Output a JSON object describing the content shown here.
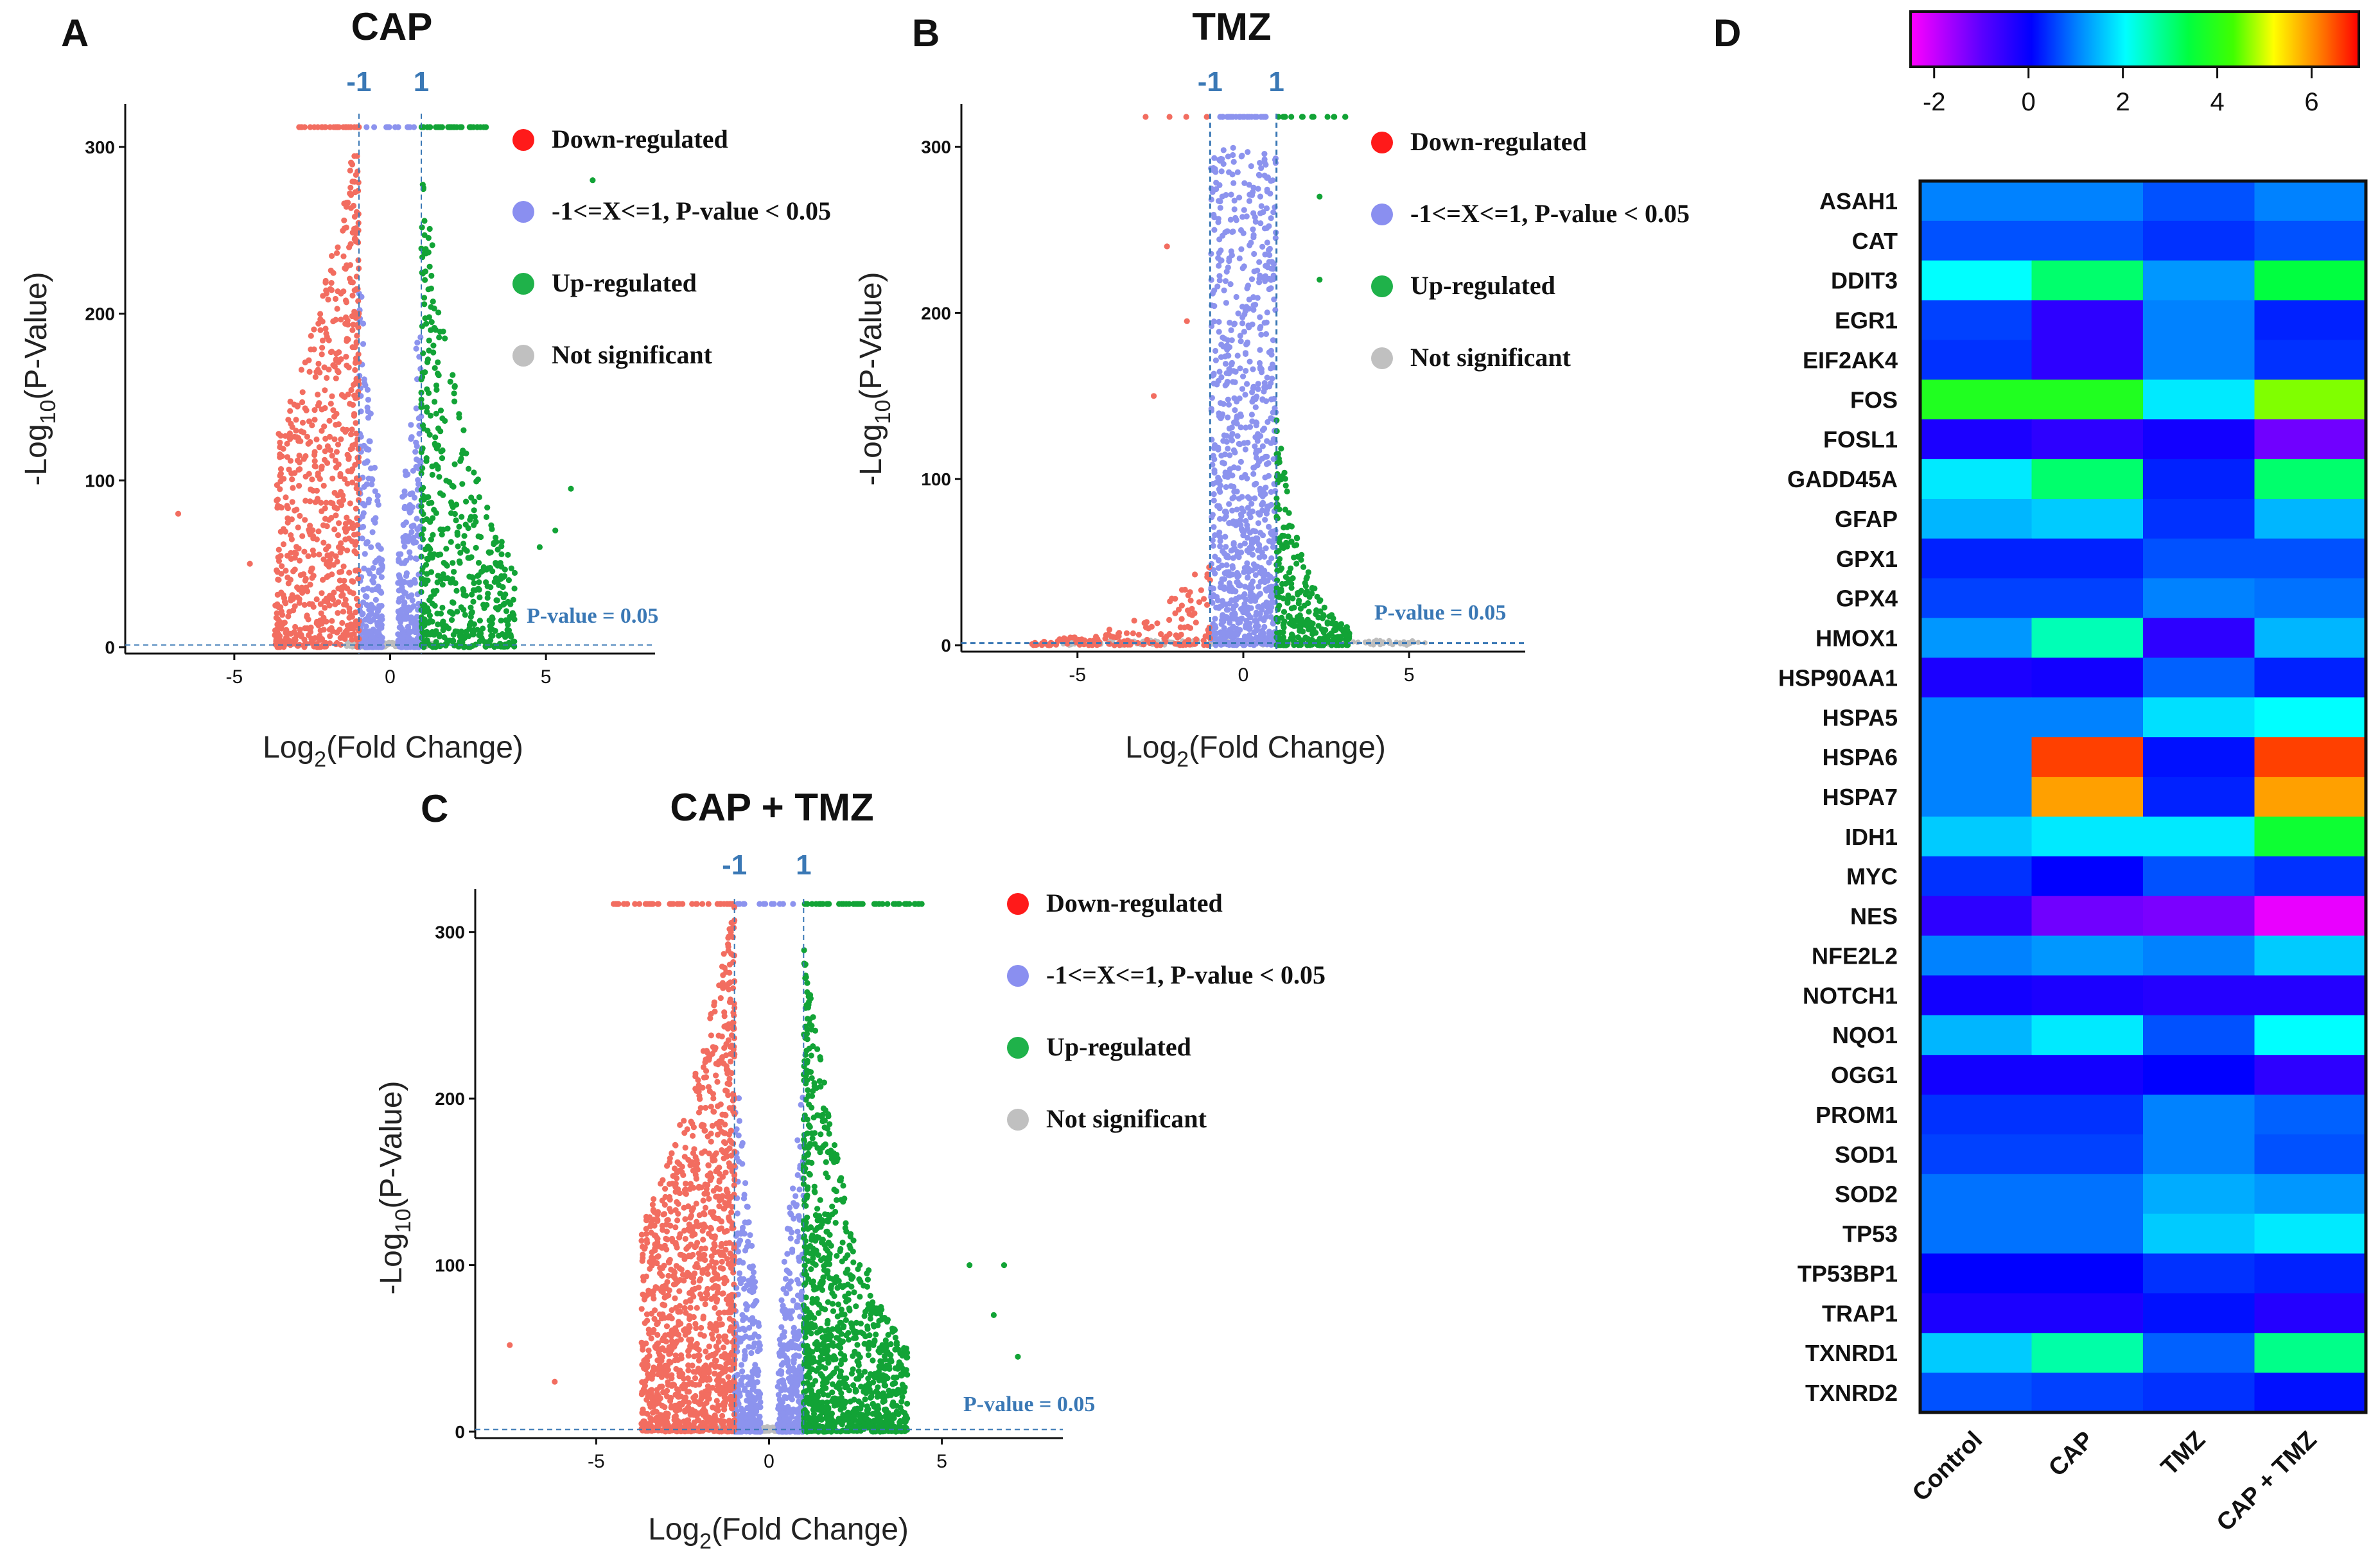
{
  "panels": [
    {
      "id": "A",
      "title": "CAP"
    },
    {
      "id": "B",
      "title": "TMZ"
    },
    {
      "id": "C",
      "title": "CAP + TMZ"
    },
    {
      "id": "D",
      "title": ""
    }
  ],
  "volcano_common": {
    "ylabel_main": "-Log",
    "ylabel_sub": "10",
    "ylabel_rest": "(P-Value)",
    "xlabel_main": "Log",
    "xlabel_sub": "2",
    "xlabel_rest": "(Fold Change)",
    "thr_neg": "-1",
    "thr_pos": "1",
    "pvalue_note": "P-value = 0.05",
    "legend": [
      {
        "label": "Down-regulated",
        "color": "#ff1a1a"
      },
      {
        "label": "-1<=X<=1, P-value < 0.05",
        "color": "#8a8ff0"
      },
      {
        "label": "Up-regulated",
        "color": "#1fb24a"
      },
      {
        "label": "Not significant",
        "color": "#c0c0c0"
      }
    ],
    "point_colors": {
      "down": "#f26d60",
      "mid": "#8c93ee",
      "up": "#12a336",
      "ns": "#bdbdbd"
    },
    "threshold_color": "#3a78b5"
  },
  "chart_data": [
    {
      "type": "scatter",
      "panel": "A",
      "title": "CAP",
      "xlabel": "Log2(Fold Change)",
      "ylabel": "-Log10(P-Value)",
      "xlim": [
        -8.5,
        8.5
      ],
      "ylim": [
        0,
        318
      ],
      "xticks": [
        -5,
        0,
        5
      ],
      "yticks": [
        0,
        100,
        200,
        300
      ],
      "thresholds": {
        "fold_change": [
          -1,
          1
        ],
        "pvalue": 0.05
      },
      "approx_counts": {
        "down": 700,
        "mid": 480,
        "up": 520,
        "ns": 200
      },
      "extremes": {
        "down": [
          [
            -6.8,
            80
          ],
          [
            -4.5,
            50
          ]
        ],
        "up": [
          [
            5.3,
            70
          ],
          [
            5.8,
            95
          ],
          [
            4.8,
            60
          ],
          [
            6.5,
            280
          ]
        ]
      }
    },
    {
      "type": "scatter",
      "panel": "B",
      "title": "TMZ",
      "xlabel": "Log2(Fold Change)",
      "ylabel": "-Log10(P-Value)",
      "xlim": [
        -8.5,
        8.5
      ],
      "ylim": [
        0,
        318
      ],
      "xticks": [
        -5,
        0,
        5
      ],
      "yticks": [
        0,
        100,
        200,
        300
      ],
      "thresholds": {
        "fold_change": [
          -1,
          1
        ],
        "pvalue": 0.05
      },
      "approx_counts": {
        "down": 160,
        "mid": 900,
        "up": 320,
        "ns": 200
      },
      "extremes": {
        "down": [
          [
            -2.7,
            150
          ],
          [
            -1.7,
            195
          ],
          [
            -2.3,
            240
          ]
        ],
        "up": [
          [
            2.3,
            270
          ],
          [
            2.3,
            220
          ]
        ]
      }
    },
    {
      "type": "scatter",
      "panel": "C",
      "title": "CAP + TMZ",
      "xlabel": "Log2(Fold Change)",
      "ylabel": "-Log10(P-Value)",
      "xlim": [
        -8.5,
        8.5
      ],
      "ylim": [
        0,
        318
      ],
      "xticks": [
        -5,
        0,
        5
      ],
      "yticks": [
        0,
        100,
        200,
        300
      ],
      "thresholds": {
        "fold_change": [
          -1,
          1
        ],
        "pvalue": 0.05
      },
      "approx_counts": {
        "down": 1300,
        "mid": 700,
        "up": 1100,
        "ns": 300
      },
      "extremes": {
        "down": [
          [
            -7.5,
            52
          ],
          [
            -6.2,
            30
          ]
        ],
        "up": [
          [
            5.8,
            100
          ],
          [
            6.8,
            100
          ],
          [
            7.2,
            45
          ],
          [
            6.5,
            70
          ]
        ]
      }
    },
    {
      "type": "heatmap",
      "panel": "D",
      "columns": [
        "Control",
        "CAP",
        "TMZ",
        "CAP + TMZ"
      ],
      "rows": [
        "ASAH1",
        "CAT",
        "DDIT3",
        "EGR1",
        "EIF2AK4",
        "FOS",
        "FOSL1",
        "GADD45A",
        "GFAP",
        "GPX1",
        "GPX4",
        "HMOX1",
        "HSP90AA1",
        "HSPA5",
        "HSPA6",
        "HSPA7",
        "IDH1",
        "MYC",
        "NES",
        "NFE2L2",
        "NOTCH1",
        "NQO1",
        "OGG1",
        "PROM1",
        "SOD1",
        "SOD2",
        "TP53",
        "TP53BP1",
        "TRAP1",
        "TXNRD1",
        "TXNRD2"
      ],
      "values": [
        [
          0.8,
          0.8,
          0.5,
          0.8
        ],
        [
          0.5,
          0.5,
          0.3,
          0.5
        ],
        [
          2.0,
          3.0,
          1.0,
          3.3
        ],
        [
          0.4,
          -0.5,
          0.8,
          0.2
        ],
        [
          0.3,
          -0.5,
          0.8,
          0.3
        ],
        [
          3.8,
          3.8,
          1.8,
          4.6
        ],
        [
          -0.3,
          -0.5,
          -0.2,
          -1.2
        ],
        [
          1.8,
          3.0,
          0.2,
          3.0
        ],
        [
          1.3,
          1.5,
          0.3,
          1.3
        ],
        [
          0.2,
          0.2,
          0.5,
          0.5
        ],
        [
          0.4,
          0.4,
          0.8,
          0.7
        ],
        [
          1.0,
          2.5,
          -0.5,
          1.3
        ],
        [
          -0.3,
          -0.2,
          0.6,
          0.2
        ],
        [
          0.8,
          0.8,
          1.7,
          2.0
        ],
        [
          0.8,
          6.5,
          0.1,
          6.5
        ],
        [
          0.8,
          5.8,
          0.2,
          5.8
        ],
        [
          1.5,
          1.8,
          1.8,
          3.5
        ],
        [
          0.3,
          0.0,
          0.5,
          0.3
        ],
        [
          -0.5,
          -1.2,
          -1.3,
          -2.3
        ],
        [
          0.8,
          1.0,
          0.8,
          1.5
        ],
        [
          -0.2,
          -0.3,
          -0.4,
          -0.4
        ],
        [
          1.3,
          1.8,
          0.5,
          2.0
        ],
        [
          -0.2,
          -0.2,
          0.0,
          -0.5
        ],
        [
          0.3,
          0.3,
          0.8,
          0.6
        ],
        [
          0.4,
          0.4,
          0.8,
          0.5
        ],
        [
          0.7,
          0.7,
          1.2,
          1.0
        ],
        [
          0.7,
          0.7,
          1.5,
          1.8
        ],
        [
          0.0,
          0.0,
          0.3,
          0.2
        ],
        [
          -0.3,
          -0.3,
          0.1,
          -0.4
        ],
        [
          1.5,
          2.6,
          0.6,
          2.8
        ],
        [
          0.5,
          0.4,
          0.3,
          0.1
        ]
      ],
      "colorbar": {
        "min": -2.5,
        "max": 7,
        "ticks": [
          "-2",
          "0",
          "2",
          "4",
          "6"
        ]
      }
    }
  ]
}
